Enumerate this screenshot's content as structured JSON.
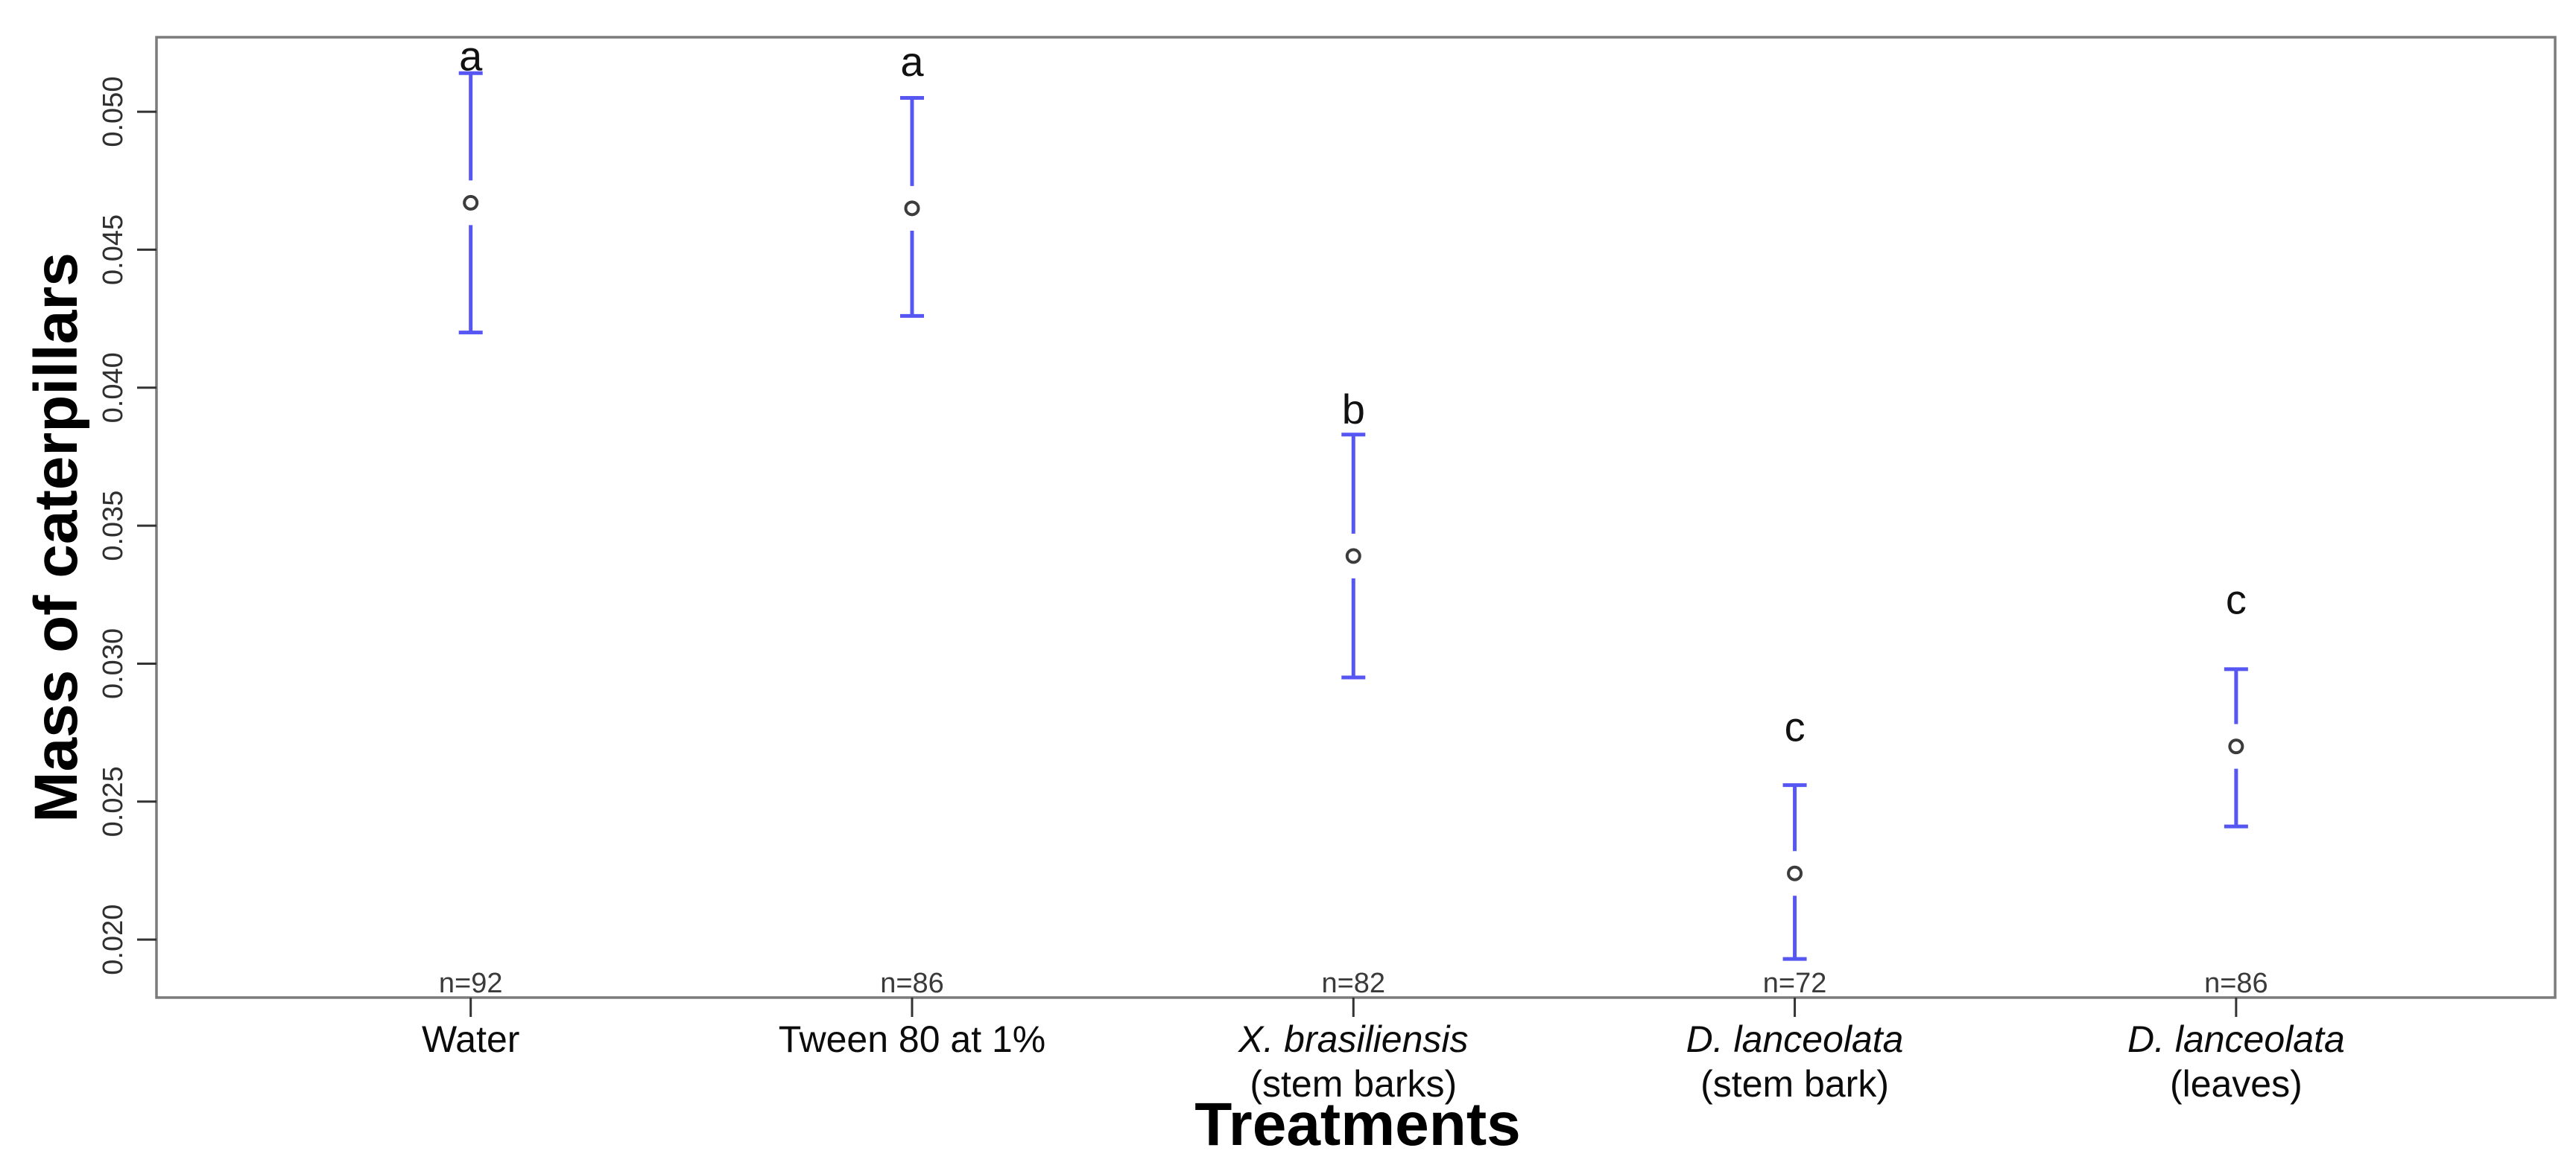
{
  "chart_data": {
    "type": "scatter",
    "subtype": "means-with-error-bars",
    "title": "",
    "ylabel": "Mass of caterpillars",
    "xlabel": "Treatments",
    "ylim": [
      0.0179,
      0.0527
    ],
    "grid": false,
    "legend": null,
    "marker": "open-circle",
    "colors": {
      "errorbar": "#5656f2",
      "marker_stroke": "#3c3c3c",
      "box_stroke": "#7b7b7b",
      "tick_label": "#2f2f2f",
      "n_label": "#3a3a3a",
      "text": "#000000"
    },
    "yticks": [
      {
        "value": 0.02,
        "label": "0.020"
      },
      {
        "value": 0.025,
        "label": "0.025"
      },
      {
        "value": 0.03,
        "label": "0.030"
      },
      {
        "value": 0.035,
        "label": "0.035"
      },
      {
        "value": 0.04,
        "label": "0.040"
      },
      {
        "value": 0.045,
        "label": "0.045"
      },
      {
        "value": 0.05,
        "label": "0.050"
      }
    ],
    "categories": [
      "Water",
      "Tween 80 at 1%",
      "X. brasiliensis\n(stem barks)",
      "D. lanceolata\n(stem bark)",
      "D. lanceolata\n(leaves)"
    ],
    "points": [
      {
        "label_lines": [
          {
            "text": "Water",
            "italic": false
          }
        ],
        "letter": "a",
        "n": "n=92",
        "mean": 0.0467,
        "ci_low": 0.042,
        "ci_high": 0.0514
      },
      {
        "label_lines": [
          {
            "text": "Tween 80 at 1%",
            "italic": false
          }
        ],
        "letter": "a",
        "n": "n=86",
        "mean": 0.0465,
        "ci_low": 0.0426,
        "ci_high": 0.0505
      },
      {
        "label_lines": [
          {
            "text": "X. brasiliensis",
            "italic": true
          },
          {
            "text": "(stem barks)",
            "italic": false
          }
        ],
        "letter": "b",
        "n": "n=82",
        "mean": 0.0339,
        "ci_low": 0.0295,
        "ci_high": 0.0383
      },
      {
        "label_lines": [
          {
            "text": "D. lanceolata",
            "italic": true
          },
          {
            "text": "(stem bark)",
            "italic": false
          }
        ],
        "letter": "c",
        "n": "n=72",
        "mean": 0.0224,
        "ci_low": 0.0193,
        "ci_high": 0.0256
      },
      {
        "label_lines": [
          {
            "text": "D. lanceolata",
            "italic": true
          },
          {
            "text": "(leaves)",
            "italic": false
          }
        ],
        "letter": "c",
        "n": "n=86",
        "mean": 0.027,
        "ci_low": 0.0241,
        "ci_high": 0.0298
      }
    ]
  }
}
